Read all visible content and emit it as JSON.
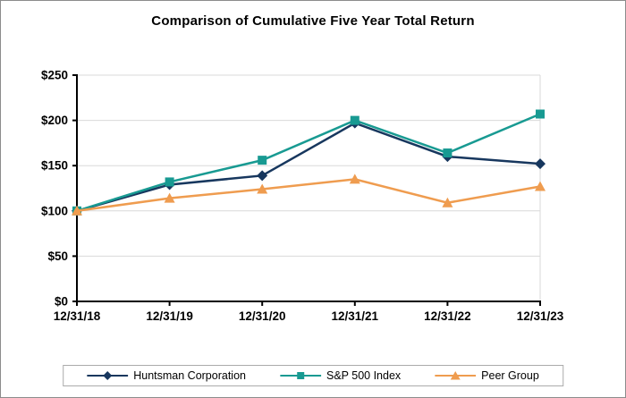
{
  "title": "Comparison of Cumulative Five Year Total Return",
  "chart_data": {
    "type": "line",
    "title": "Comparison of Cumulative Five Year Total Return",
    "categories": [
      "12/31/18",
      "12/31/19",
      "12/31/20",
      "12/31/21",
      "12/31/22",
      "12/31/23"
    ],
    "series": [
      {
        "name": "Huntsman Corporation",
        "marker": "diamond",
        "color": "#17375E",
        "values": [
          100,
          129,
          139,
          197,
          160,
          152
        ]
      },
      {
        "name": "S&P 500 Index",
        "marker": "square",
        "color": "#189A92",
        "values": [
          100,
          132,
          156,
          200,
          164,
          207
        ]
      },
      {
        "name": "Peer Group",
        "marker": "triangle",
        "color": "#EF9C4F",
        "values": [
          100,
          114,
          124,
          135,
          109,
          127
        ]
      }
    ],
    "xlabel": "",
    "ylabel": "",
    "ylim": [
      0,
      250
    ],
    "ytick_step": 50,
    "ytick_labels": [
      "$0",
      "$50",
      "$100",
      "$150",
      "$200",
      "$250"
    ],
    "grid": "horizontal",
    "legend_position": "bottom"
  },
  "colors": {
    "axis": "#000000",
    "gridline": "#D9D9D9",
    "plot_right_border": "#D9D9D9",
    "frame_border": "#8C8C8C",
    "legend_border": "#ABABAB",
    "background": "#FFFFFF",
    "tick_label": "#000000"
  }
}
